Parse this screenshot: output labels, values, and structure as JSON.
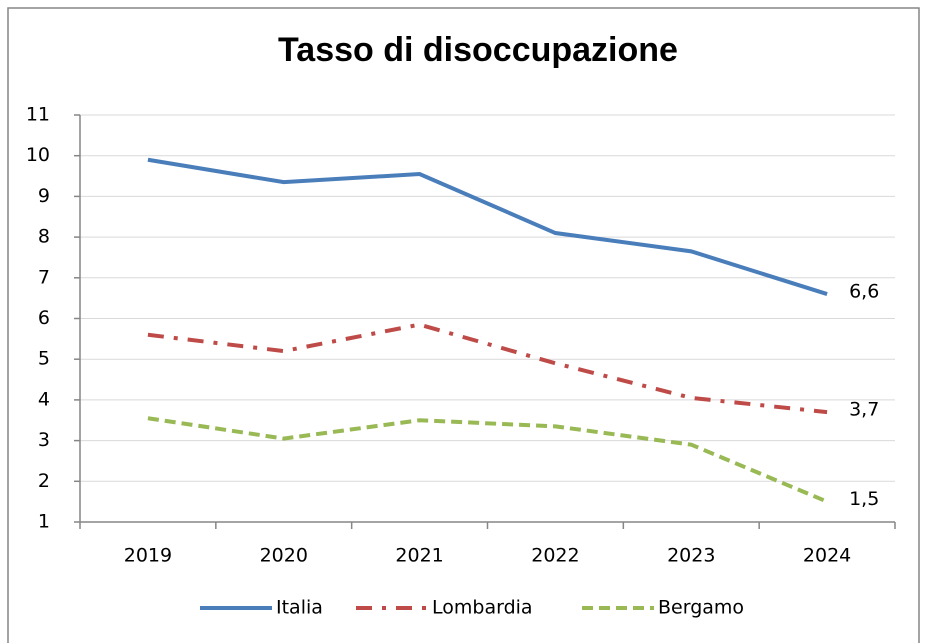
{
  "chart_data": {
    "type": "line",
    "title": "Tasso di disoccupazione",
    "categories": [
      "2019",
      "2020",
      "2021",
      "2022",
      "2023",
      "2024"
    ],
    "series": [
      {
        "name": "Italia",
        "color": "#4a7ebb",
        "dash": "solid",
        "values": [
          9.9,
          9.35,
          9.55,
          8.1,
          7.65,
          6.6
        ],
        "value_labels": [
          null,
          null,
          null,
          null,
          null,
          "6,6"
        ]
      },
      {
        "name": "Lombardia",
        "color": "#be4b48",
        "dash": "dashdot",
        "values": [
          5.6,
          5.2,
          5.85,
          4.9,
          4.05,
          3.7
        ],
        "value_labels": [
          null,
          null,
          null,
          null,
          null,
          "3,7"
        ]
      },
      {
        "name": "Bergamo",
        "color": "#98b954",
        "dash": "dashed",
        "values": [
          3.55,
          3.05,
          3.5,
          3.35,
          2.9,
          1.5
        ],
        "value_labels": [
          null,
          null,
          null,
          null,
          null,
          "1,5"
        ]
      }
    ],
    "ylim": [
      1,
      11
    ],
    "yticks": [
      1,
      2,
      3,
      4,
      5,
      6,
      7,
      8,
      9,
      10,
      11
    ],
    "grid": true,
    "legend": "bottom"
  }
}
